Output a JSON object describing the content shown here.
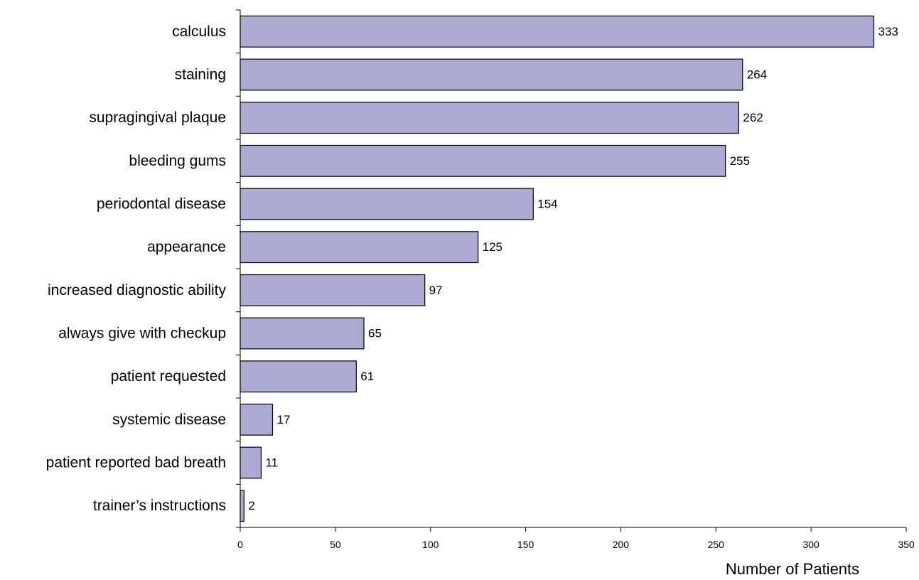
{
  "chart_data": {
    "type": "bar",
    "orientation": "horizontal",
    "categories": [
      "calculus",
      "staining",
      "supragingival plaque",
      "bleeding gums",
      "periodontal disease",
      "appearance",
      "increased diagnostic ability",
      "always give with checkup",
      "patient requested",
      "systemic disease",
      "patient reported bad breath",
      "trainer’s instructions"
    ],
    "values": [
      333,
      264,
      262,
      255,
      154,
      125,
      97,
      65,
      61,
      17,
      11,
      2
    ],
    "xlabel": "Number of Patients",
    "ylabel": "",
    "xlim": [
      0,
      350
    ],
    "xticks": [
      0,
      50,
      100,
      150,
      200,
      250,
      300,
      350
    ],
    "grid": false,
    "bar_color": "#aaaad2",
    "bar_edge_color": "#000000"
  }
}
